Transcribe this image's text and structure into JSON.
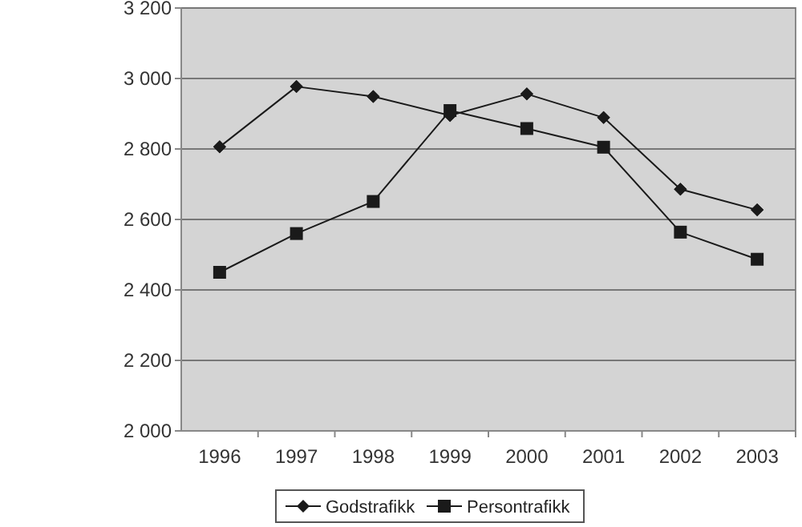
{
  "chart_data": {
    "type": "line",
    "categories": [
      "1996",
      "1997",
      "1998",
      "1999",
      "2000",
      "2001",
      "2002",
      "2003"
    ],
    "series": [
      {
        "name": "Godstrafikk",
        "color": "#1a1a1a",
        "marker": "diamond",
        "values": [
          2806,
          2977,
          2949,
          2895,
          2956,
          2889,
          2686,
          2627
        ]
      },
      {
        "name": "Persontrafikk",
        "color": "#1a1a1a",
        "marker": "square",
        "values": [
          2450,
          2560,
          2651,
          2909,
          2858,
          2805,
          2564,
          2487
        ]
      }
    ],
    "ylim": [
      2000,
      3200
    ],
    "yticks": [
      {
        "value": 2000,
        "label": "2 000"
      },
      {
        "value": 2200,
        "label": "2 200"
      },
      {
        "value": 2400,
        "label": "2 400"
      },
      {
        "value": 2600,
        "label": "2 600"
      },
      {
        "value": 2800,
        "label": "2 800"
      },
      {
        "value": 3000,
        "label": "3 000"
      },
      {
        "value": 3200,
        "label": "3 200"
      }
    ],
    "grid": "y",
    "legend": "bottom"
  }
}
